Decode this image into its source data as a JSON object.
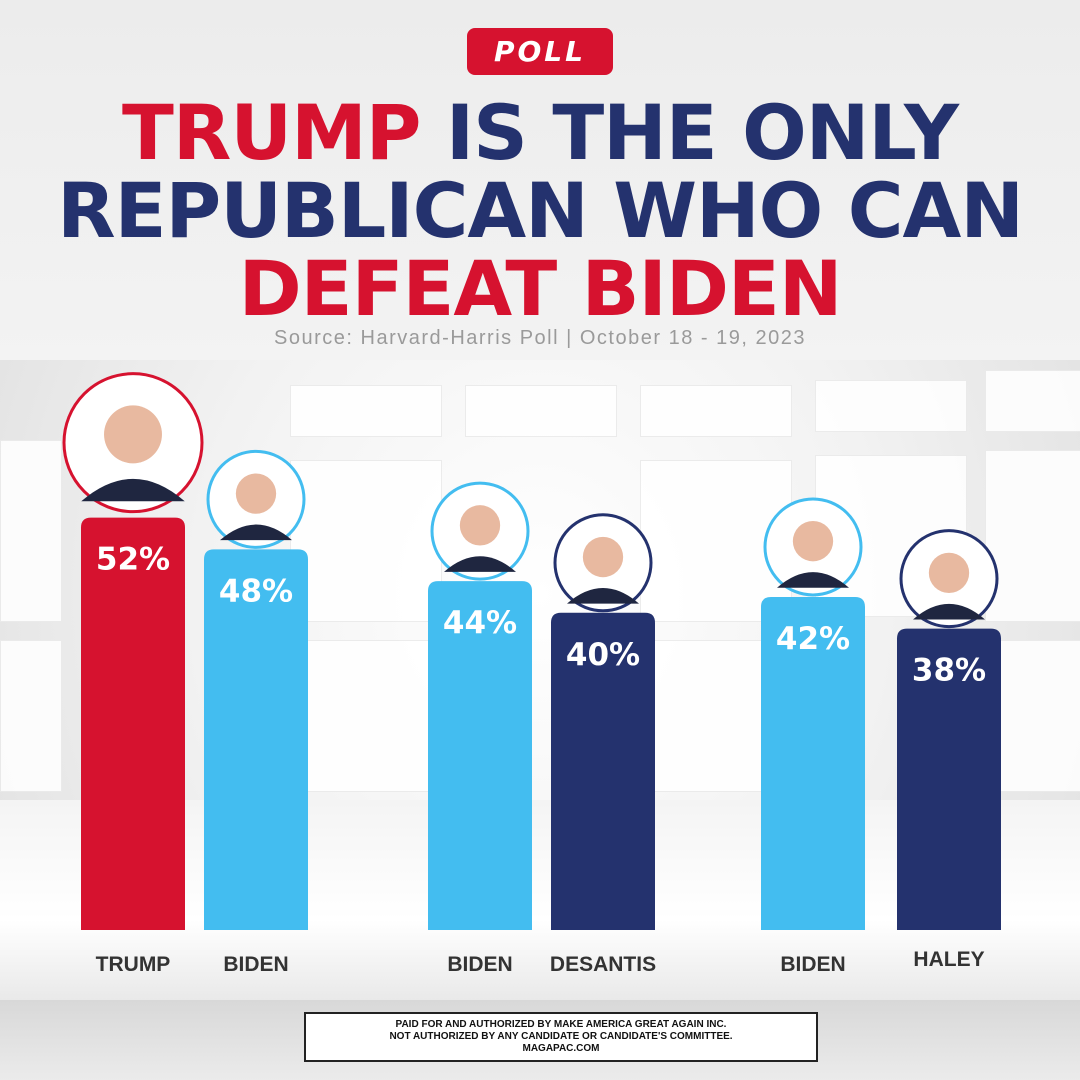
{
  "badge": "POLL",
  "headline": {
    "line1_red": "TRUMP",
    "line1_navy": " IS THE ONLY",
    "line2": "REPUBLICAN WHO CAN",
    "line3": "DEFEAT BIDEN"
  },
  "source": "Source: Harvard-Harris Poll | October 18 - 19, 2023",
  "colors": {
    "red": "#d6122f",
    "light_blue": "#43bdf0",
    "navy": "#24326e"
  },
  "chart_data": {
    "type": "bar",
    "unit": "%",
    "matchups": [
      {
        "bars": [
          {
            "name": "TRUMP",
            "value": 52,
            "color": "#d6122f"
          },
          {
            "name": "BIDEN",
            "value": 48,
            "color": "#43bdf0"
          }
        ]
      },
      {
        "bars": [
          {
            "name": "BIDEN",
            "value": 44,
            "color": "#43bdf0"
          },
          {
            "name": "DESANTIS",
            "value": 40,
            "color": "#24326e"
          }
        ]
      },
      {
        "bars": [
          {
            "name": "BIDEN",
            "value": 42,
            "color": "#43bdf0"
          },
          {
            "name": "HALEY",
            "value": 38,
            "color": "#24326e"
          }
        ]
      }
    ]
  },
  "disclaimer": {
    "line1": "PAID FOR AND AUTHORIZED BY MAKE AMERICA GREAT AGAIN INC.",
    "line2": "NOT AUTHORIZED BY ANY CANDIDATE OR CANDIDATE'S COMMITTEE.",
    "line3": "MAGAPAC.COM"
  }
}
